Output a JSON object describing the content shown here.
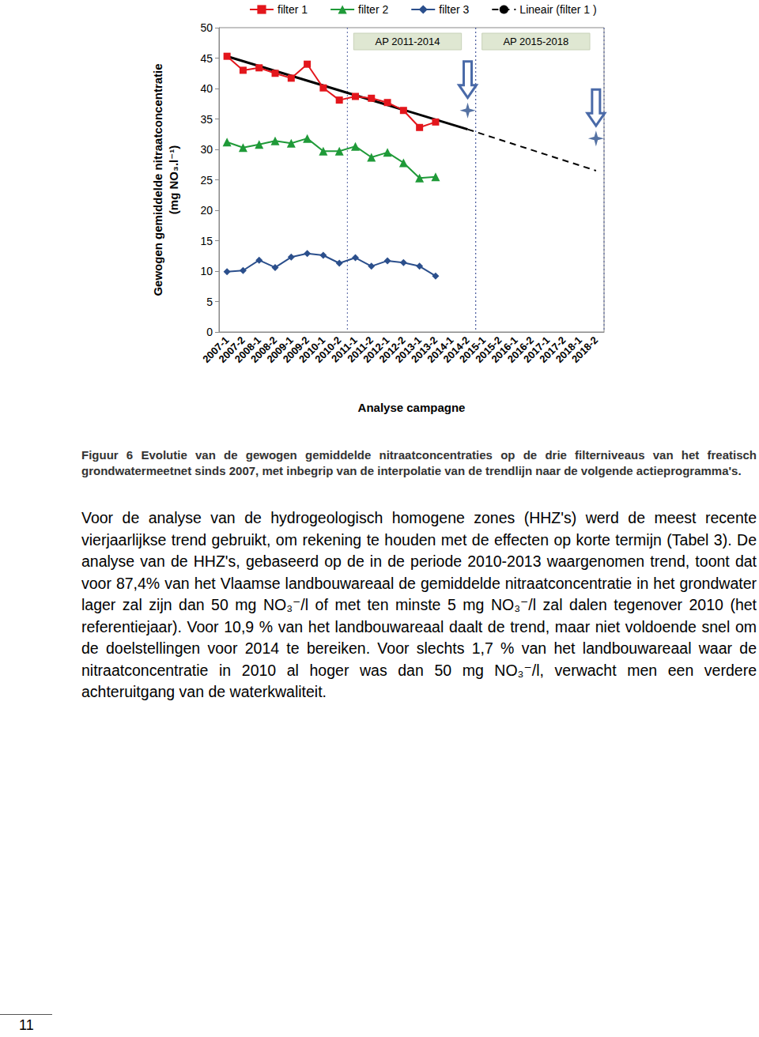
{
  "chart_data": {
    "type": "line",
    "y_label": [
      "Gewogen gemiddelde nitraatconcentratie",
      "(mg NO₃.l⁻¹)"
    ],
    "x_label": "Analyse campagne",
    "categories": [
      "2007-1",
      "2007-2",
      "2008-1",
      "2008-2",
      "2009-1",
      "2009-2",
      "2010-1",
      "2010-2",
      "2011-1",
      "2011-2",
      "2012-1",
      "2012-2",
      "2013-1",
      "2013-2",
      "2014-1",
      "2014-2",
      "2015-1",
      "2015-2",
      "2016-1",
      "2016-2",
      "2017-1",
      "2017-2",
      "2018-1",
      "2018-2"
    ],
    "series": [
      {
        "name": "filter 1",
        "color": "#e3161c",
        "marker": "square",
        "values": [
          45.3,
          43.0,
          43.4,
          42.5,
          41.7,
          44.0,
          40.1,
          38.1,
          38.7,
          38.4,
          37.7,
          36.4,
          33.6,
          34.5,
          null,
          null,
          null,
          null,
          null,
          null,
          null,
          null,
          null,
          null
        ]
      },
      {
        "name": "filter 2",
        "color": "#1f9a38",
        "marker": "triangle",
        "values": [
          31.2,
          30.3,
          30.8,
          31.4,
          31.0,
          31.8,
          29.7,
          29.7,
          30.5,
          28.7,
          29.5,
          27.8,
          25.3,
          25.5,
          null,
          null,
          null,
          null,
          null,
          null,
          null,
          null,
          null,
          null
        ]
      },
      {
        "name": "filter 3",
        "color": "#2b4f8c",
        "marker": "diamond",
        "values": [
          9.9,
          10.1,
          11.8,
          10.6,
          12.3,
          12.9,
          12.6,
          11.3,
          12.2,
          10.8,
          11.7,
          11.4,
          10.8,
          9.2,
          null,
          null,
          null,
          null,
          null,
          null,
          null,
          null,
          null,
          null
        ]
      },
      {
        "name": "Lineair (filter 1 )",
        "color": "#000000",
        "marker": "none",
        "line_style": "dashed",
        "values": [
          null,
          null,
          null,
          null,
          null,
          null,
          null,
          null,
          null,
          null,
          null,
          null,
          null,
          null,
          null,
          33.3,
          null,
          null,
          null,
          null,
          null,
          null,
          null,
          26.5
        ]
      },
      {
        "name": "Lineair (filter 1 )",
        "color": "#000000",
        "marker": "none",
        "line_style": "solid",
        "values": [
          45.3,
          null,
          null,
          null,
          null,
          null,
          null,
          null,
          null,
          null,
          null,
          null,
          null,
          null,
          null,
          33.3,
          null,
          null,
          null,
          null,
          null,
          null,
          null,
          null
        ]
      }
    ],
    "target_points": {
      "marker": "star",
      "color": "#2b4f8c",
      "values": [
        null,
        null,
        null,
        null,
        null,
        null,
        null,
        null,
        null,
        null,
        null,
        null,
        null,
        null,
        null,
        36.4,
        null,
        null,
        null,
        null,
        null,
        null,
        null,
        31.8
      ]
    },
    "periods": [
      {
        "label": "AP 2011-2014",
        "from": "2011-1",
        "to": "2014-2"
      },
      {
        "label": "AP 2015-2018",
        "from": "2015-1",
        "to": "2018-2"
      }
    ],
    "ylim": [
      0,
      50
    ],
    "yticks": [
      0,
      5,
      10,
      15,
      20,
      25,
      30,
      35,
      40,
      45,
      50
    ],
    "grid": false,
    "legend": "top"
  },
  "caption": "Figuur 6 Evolutie van de gewogen gemiddelde nitraatconcentraties op de drie filterniveaus van het freatisch grondwatermeetnet sinds 2007, met inbegrip van de interpolatie van de trendlijn naar de volgende actieprogramma's.",
  "paragraph": "Voor de analyse van de hydrogeologisch homogene zones (HHZ's) werd de meest recente vierjaarlijkse trend gebruikt, om rekening te houden met de effecten op korte termijn (Tabel 3). De analyse van de HHZ's, gebaseerd op de in de periode 2010-2013 waargenomen trend, toont dat voor 87,4% van het Vlaamse landbouwareaal de gemiddelde nitraatconcentratie in het grondwater lager zal zijn dan 50 mg NO₃⁻/l of met ten minste 5 mg NO₃⁻/l zal dalen tegenover 2010 (het referentiejaar). Voor 10,9 % van het landbouwareaal daalt de trend, maar niet voldoende snel om de doelstellingen voor 2014 te bereiken. Voor slechts 1,7 % van het landbouwareaal waar de nitraatconcentratie in 2010 al hoger was dan 50 mg NO₃⁻/l, verwacht men een verdere achteruitgang van de waterkwaliteit.",
  "page_number": "11"
}
